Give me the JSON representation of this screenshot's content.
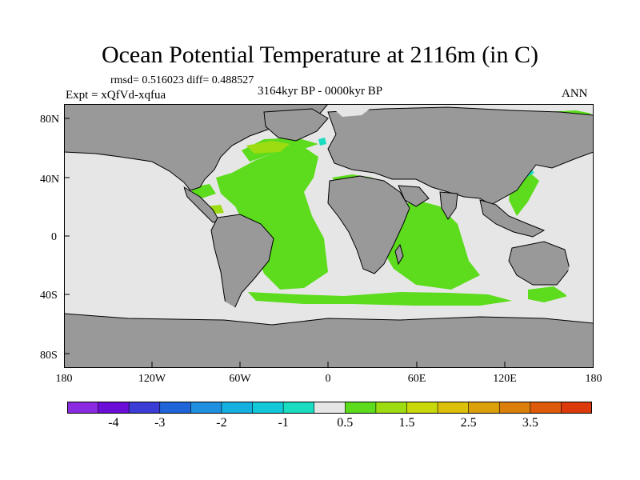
{
  "title": "Ocean Potential Temperature at 2116m (in C)",
  "stats": "rmsd= 0.516023 diff= 0.488527",
  "period": "3164kyr BP - 0000kyr BP",
  "experiment": "Expt = xQfVd-xqfua",
  "season": "ANN",
  "lat_labels": [
    "80N",
    "40N",
    "0",
    "40S",
    "80S"
  ],
  "lon_labels": [
    "180",
    "120W",
    "60W",
    "0",
    "60E",
    "120E",
    "180"
  ],
  "colorbar": {
    "colors": [
      "#8a2be2",
      "#6a0ed8",
      "#3b3bd6",
      "#1f64d8",
      "#1f8fe0",
      "#13b0e0",
      "#13c8d8",
      "#19dcc0",
      "#e6e6e6",
      "#5cdc1c",
      "#9cdc10",
      "#c8d80a",
      "#dcc00a",
      "#dca00a",
      "#dc7f0a",
      "#dc5a0a",
      "#dc3a0a"
    ],
    "labels": [
      "-4",
      "-3",
      "-2",
      "-1",
      "0.5",
      "1.5",
      "2.5",
      "3.5"
    ]
  },
  "colors": {
    "land": "#999999",
    "ocean_no_change": "#e6e6e6",
    "warm_small": "#5cdc1c",
    "warm_mid": "#9cdc10",
    "cool": "#19dcc0"
  }
}
